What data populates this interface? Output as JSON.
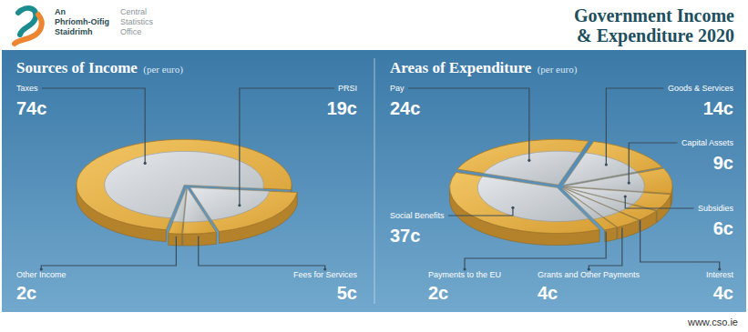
{
  "header": {
    "org_irish": "An Phríomh-Oifig Staidrimh",
    "org_english": "Central Statistics Office",
    "title": "Government Income & Expenditure 2020"
  },
  "chart_data": [
    {
      "type": "pie",
      "title": "Sources of Income",
      "subtitle": "(per euro)",
      "categories": [
        "Taxes",
        "PRSI",
        "Fees for Services",
        "Other Income"
      ],
      "values": [
        74,
        19,
        5,
        2
      ],
      "value_labels": [
        "74c",
        "19c",
        "5c",
        "2c"
      ],
      "data_labels": true
    },
    {
      "type": "pie",
      "title": "Areas of Expenditure",
      "subtitle": "(per euro)",
      "categories": [
        "Pay",
        "Goods & Services",
        "Capital Assets",
        "Subsidies",
        "Interest",
        "Grants and Other Payments",
        "Payments to the EU",
        "Social Benefits"
      ],
      "values": [
        24,
        14,
        9,
        6,
        4,
        4,
        2,
        37
      ],
      "value_labels": [
        "24c",
        "14c",
        "9c",
        "6c",
        "4c",
        "4c",
        "2c",
        "37c"
      ],
      "data_labels": true
    }
  ],
  "footer": {
    "url": "www.cso.ie"
  }
}
